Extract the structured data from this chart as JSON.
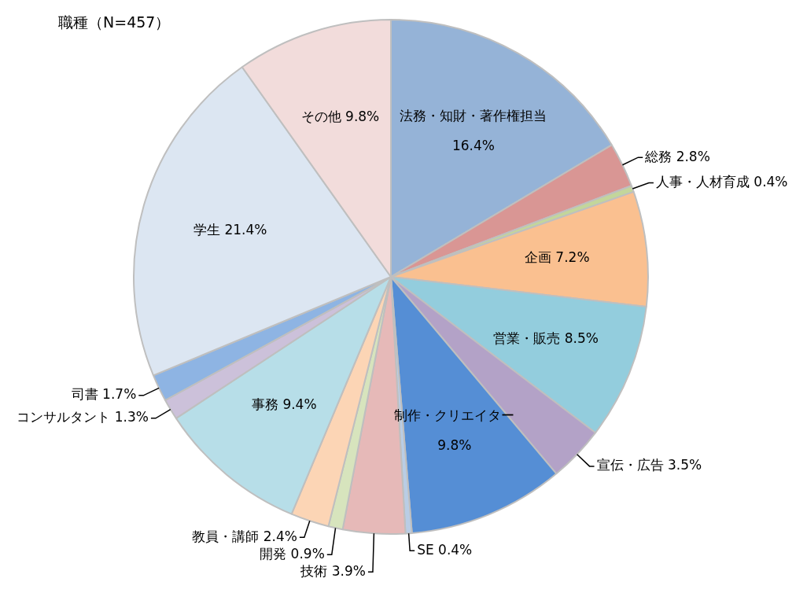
{
  "chart_data": {
    "type": "pie",
    "title": "職種（N=457）",
    "categories": [
      "法務・知財・著作権担当",
      "総務",
      "人事・人材育成",
      "企画",
      "営業・販売",
      "宣伝・広告",
      "制作・クリエイター",
      "SE",
      "技術",
      "開発",
      "教員・講師",
      "事務",
      "コンサルタント",
      "司書",
      "学生",
      "その他"
    ],
    "values": [
      16.4,
      2.8,
      0.4,
      7.2,
      8.5,
      3.5,
      9.8,
      0.4,
      3.9,
      0.9,
      2.4,
      9.4,
      1.3,
      1.7,
      21.4,
      9.8
    ],
    "value_labels": [
      "16.4%",
      "2.8%",
      "0.4%",
      "7.2%",
      "8.5%",
      "3.5%",
      "9.8%",
      "0.4%",
      "3.9%",
      "0.9%",
      "2.4%",
      "9.4%",
      "1.3%",
      "1.7%",
      "21.4%",
      "9.8%"
    ],
    "colors": [
      "#95b3d7",
      "#d99694",
      "#c3d69b",
      "#fac090",
      "#93cddd",
      "#b3a2c7",
      "#558ed5",
      "#b9cde5",
      "#e6b9b8",
      "#d7e4bd",
      "#fcd5b5",
      "#b7dee8",
      "#ccc1da",
      "#8eb4e3",
      "#dce6f2",
      "#f2dcdb"
    ],
    "legend": false
  }
}
